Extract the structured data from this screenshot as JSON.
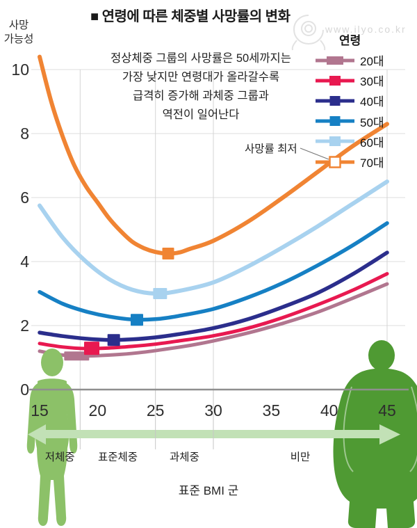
{
  "title": "■ 연령에 따른 체중별 사망률의 변화",
  "watermark": {
    "text": "www.ilyo.co.kr"
  },
  "y_axis_title_line1": "사망",
  "y_axis_title_line2": "가능성",
  "annotation": {
    "lines": [
      "정상체중 그룹의 사망률은 50세까지는",
      "가장 낮지만 연령대가 올라갈수록",
      "급격히 증가해 과체중 그룹과",
      "역전이 일어난다"
    ]
  },
  "min_label": "사망률 최저",
  "legend": {
    "title": "연령",
    "items": [
      {
        "label": "20대",
        "color": "#b1768f",
        "marker": "solid",
        "mw": 24,
        "mh": 12
      },
      {
        "label": "30대",
        "color": "#e81950",
        "marker": "solid",
        "mw": 16,
        "mh": 14
      },
      {
        "label": "40대",
        "color": "#2b2e8c",
        "marker": "solid",
        "mw": 15,
        "mh": 14
      },
      {
        "label": "50대",
        "color": "#1680c4",
        "marker": "solid",
        "mw": 15,
        "mh": 14
      },
      {
        "label": "60대",
        "color": "#a8d2ef",
        "marker": "solid",
        "mw": 16,
        "mh": 14
      },
      {
        "label": "70대",
        "color": "#f08433",
        "marker": "hollow",
        "mw": 15,
        "mh": 15
      }
    ]
  },
  "x_axis": {
    "title": "표준 BMI 군"
  },
  "figures": {
    "thin_color": "#8cc168",
    "obese_color": "#4f9a33",
    "arrow_color": "#c2e1b6"
  },
  "chart_data": {
    "type": "line",
    "title": "연령에 따른 체중별 사망률의 변화",
    "xlabel": "표준 BMI 군",
    "ylabel": "사망 가능성",
    "xlim": [
      15,
      45
    ],
    "ylim": [
      0,
      10.5
    ],
    "x_ticks": [
      15,
      20,
      25,
      30,
      35,
      40,
      45
    ],
    "y_ticks": [
      0,
      2,
      4,
      6,
      8,
      10
    ],
    "grid": true,
    "legend_position": "right",
    "category_boundaries_bmi": [
      18.5,
      25,
      30
    ],
    "weight_categories": [
      "저체중",
      "표준체중",
      "과체중",
      "비만"
    ],
    "min_marker_label": "사망률 최저",
    "series": [
      {
        "name": "20대",
        "color": "#b1768f",
        "stroke_width": 5,
        "min_marker": {
          "x": 18.2,
          "y": 1.05,
          "w": 36,
          "h": 13
        },
        "points": [
          [
            15,
            1.2
          ],
          [
            16.5,
            1.1
          ],
          [
            18,
            1.05
          ],
          [
            20,
            1.06
          ],
          [
            22,
            1.1
          ],
          [
            24,
            1.17
          ],
          [
            26,
            1.27
          ],
          [
            28,
            1.38
          ],
          [
            30,
            1.52
          ],
          [
            33,
            1.77
          ],
          [
            36,
            2.07
          ],
          [
            39,
            2.42
          ],
          [
            42,
            2.85
          ],
          [
            45,
            3.3
          ]
        ]
      },
      {
        "name": "30대",
        "color": "#e81950",
        "stroke_width": 5,
        "min_marker": {
          "x": 19.5,
          "y": 1.29,
          "w": 22,
          "h": 19
        },
        "points": [
          [
            15,
            1.44
          ],
          [
            17,
            1.33
          ],
          [
            19,
            1.28
          ],
          [
            21,
            1.3
          ],
          [
            23,
            1.35
          ],
          [
            25,
            1.42
          ],
          [
            27,
            1.52
          ],
          [
            30,
            1.68
          ],
          [
            33,
            1.92
          ],
          [
            36,
            2.25
          ],
          [
            39,
            2.65
          ],
          [
            42,
            3.1
          ],
          [
            45,
            3.62
          ]
        ]
      },
      {
        "name": "40대",
        "color": "#2b2e8c",
        "stroke_width": 5.5,
        "min_marker": {
          "x": 21.4,
          "y": 1.55,
          "w": 18,
          "h": 17
        },
        "points": [
          [
            15,
            1.78
          ],
          [
            17,
            1.67
          ],
          [
            19,
            1.59
          ],
          [
            21,
            1.55
          ],
          [
            23,
            1.57
          ],
          [
            25,
            1.63
          ],
          [
            27,
            1.73
          ],
          [
            30,
            1.92
          ],
          [
            33,
            2.2
          ],
          [
            36,
            2.58
          ],
          [
            39,
            3.02
          ],
          [
            42,
            3.6
          ],
          [
            45,
            4.28
          ]
        ]
      },
      {
        "name": "50대",
        "color": "#1680c4",
        "stroke_width": 5.5,
        "min_marker": {
          "x": 23.4,
          "y": 2.18,
          "w": 18,
          "h": 17
        },
        "points": [
          [
            15,
            3.05
          ],
          [
            17,
            2.68
          ],
          [
            19,
            2.44
          ],
          [
            21,
            2.28
          ],
          [
            23,
            2.19
          ],
          [
            25,
            2.2
          ],
          [
            27,
            2.3
          ],
          [
            30,
            2.52
          ],
          [
            33,
            2.88
          ],
          [
            36,
            3.33
          ],
          [
            39,
            3.88
          ],
          [
            42,
            4.5
          ],
          [
            45,
            5.2
          ]
        ]
      },
      {
        "name": "60대",
        "color": "#a8d2ef",
        "stroke_width": 6,
        "min_marker": {
          "x": 25.4,
          "y": 3.0,
          "w": 20,
          "h": 16
        },
        "points": [
          [
            15,
            5.75
          ],
          [
            17,
            4.75
          ],
          [
            19,
            4.0
          ],
          [
            21,
            3.45
          ],
          [
            23,
            3.12
          ],
          [
            25,
            3.0
          ],
          [
            27,
            3.08
          ],
          [
            30,
            3.35
          ],
          [
            33,
            3.85
          ],
          [
            36,
            4.45
          ],
          [
            39,
            5.1
          ],
          [
            42,
            5.8
          ],
          [
            45,
            6.5
          ]
        ]
      },
      {
        "name": "70대",
        "color": "#f08433",
        "stroke_width": 6,
        "min_marker": {
          "x": 26.1,
          "y": 4.25,
          "w": 17,
          "h": 17
        },
        "points": [
          [
            15,
            10.4
          ],
          [
            16,
            9.0
          ],
          [
            17,
            7.9
          ],
          [
            18,
            7.0
          ],
          [
            19,
            6.35
          ],
          [
            20,
            5.85
          ],
          [
            21,
            5.35
          ],
          [
            22,
            4.95
          ],
          [
            23,
            4.62
          ],
          [
            24,
            4.42
          ],
          [
            25,
            4.3
          ],
          [
            26,
            4.25
          ],
          [
            27,
            4.28
          ],
          [
            28,
            4.4
          ],
          [
            30,
            4.65
          ],
          [
            33,
            5.25
          ],
          [
            36,
            6.0
          ],
          [
            39,
            6.8
          ],
          [
            42,
            7.6
          ],
          [
            45,
            8.3
          ]
        ]
      }
    ]
  }
}
